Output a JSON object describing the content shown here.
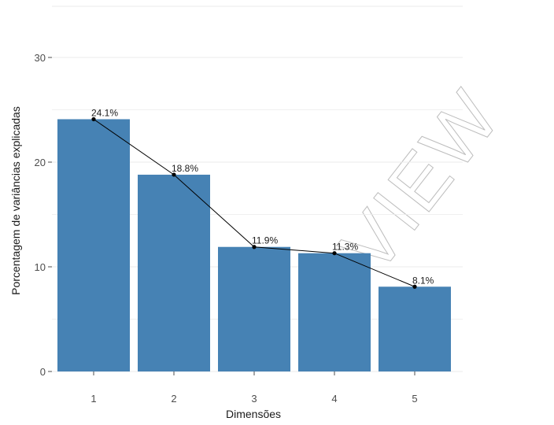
{
  "chart_data": {
    "type": "bar",
    "title": "",
    "xlabel": "Dimensões",
    "ylabel": "Porcentagem de variâncias explicadas",
    "categories": [
      "1",
      "2",
      "3",
      "4",
      "5"
    ],
    "values": [
      24.1,
      18.8,
      11.9,
      11.3,
      8.1
    ],
    "value_labels": [
      "24.1%",
      "18.8%",
      "11.9%",
      "11.3%",
      "8.1%"
    ],
    "ylim": [
      0,
      32
    ],
    "yticks": [
      0,
      10,
      20,
      30
    ],
    "ytick_labels": [
      "0",
      "10",
      "20",
      "30"
    ],
    "line_overlay": true,
    "grid": "horizontal",
    "legend": "none",
    "colors": {
      "bar": "#4682B4",
      "line": "#000000",
      "grid": "#ebebeb",
      "background": "#ffffff"
    }
  },
  "watermark": {
    "text": "VIEW",
    "color": "#bdbdbd"
  }
}
